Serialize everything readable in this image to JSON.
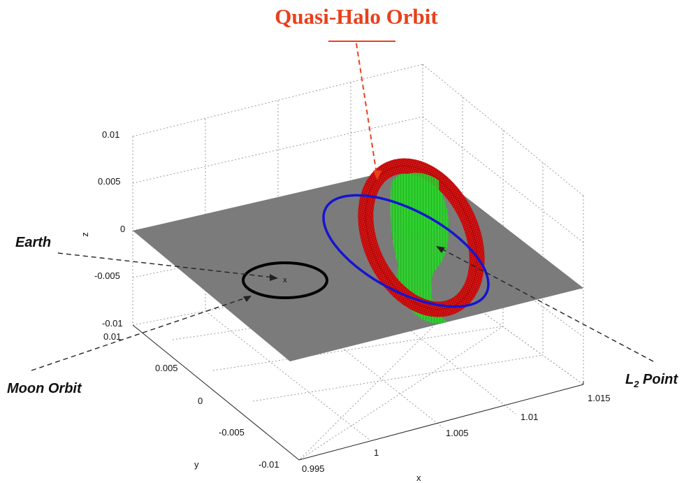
{
  "title": "Quasi-Halo Orbit",
  "callouts": {
    "earth": "Earth",
    "moon_orbit": "Moon Orbit",
    "l2_main": "L",
    "l2_sub": "2",
    "l2_tail": " Point"
  },
  "axes": {
    "x_label": "x",
    "y_label": "y",
    "z_label": "z",
    "x_ticks": [
      "0.995",
      "1",
      "1.005",
      "1.01",
      "1.015"
    ],
    "y_ticks": [
      "-0.01",
      "-0.005",
      "0",
      "0.005",
      "0.01"
    ],
    "z_ticks": [
      "0.01",
      "0.005",
      "0",
      "-0.005",
      "-0.01"
    ]
  },
  "earth_marker": "x",
  "colors": {
    "title": "#e8401c",
    "plane": "#7b7b7b",
    "moon_orbit": "#000000",
    "halo_orbit": "#1515d0",
    "quasi_halo_red": "#e81818",
    "quasi_halo_green": "#22e022",
    "grid": "#9a9a9a"
  }
}
